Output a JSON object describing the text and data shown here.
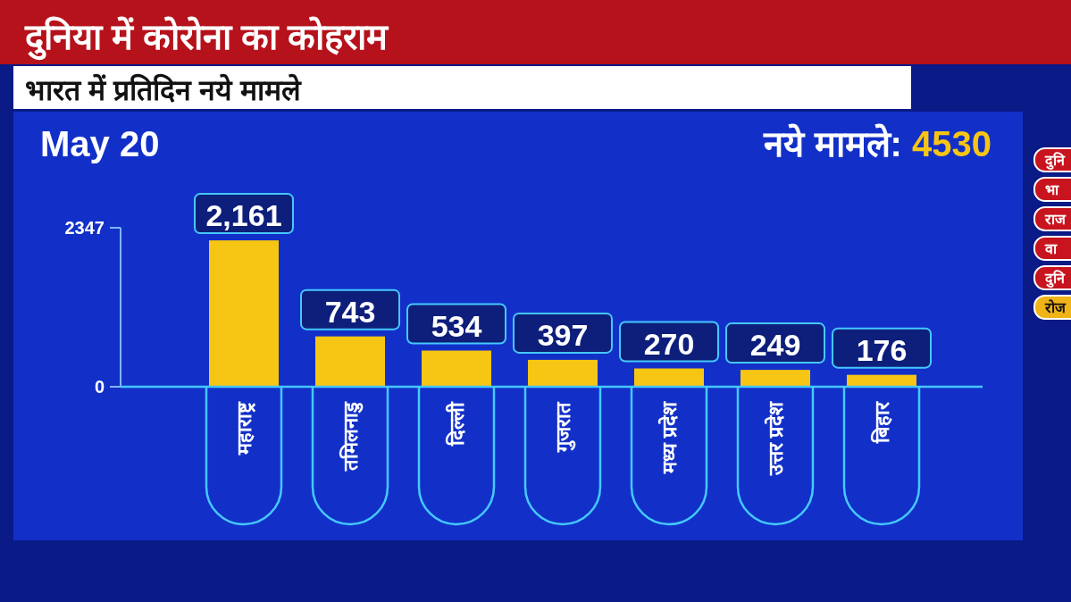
{
  "chart_data": {
    "type": "bar",
    "title": "दुनिया में कोरोना का कोहराम",
    "subtitle": "भारत में प्रतिदिन नये मामले",
    "annotations": [
      "May 20",
      "नये मामले: 4530",
      "दुनि",
      "भा",
      "राज",
      "वा",
      "दुनि",
      "रोज"
    ],
    "categories": [
      "महाराष्ट्र",
      "तमिलनाडु",
      "दिल्ली",
      "गुजरात",
      "मध्य प्रदेश",
      "उत्तर प्रदेश",
      "बिहार"
    ],
    "values": [
      2161,
      743,
      534,
      397,
      270,
      249,
      176
    ],
    "value_labels": [
      "2,161",
      "743",
      "534",
      "397",
      "270",
      "249",
      "176"
    ],
    "color": "#f7c514",
    "ylim": [
      0,
      2347
    ],
    "yticks": [
      0,
      2347
    ]
  }
}
